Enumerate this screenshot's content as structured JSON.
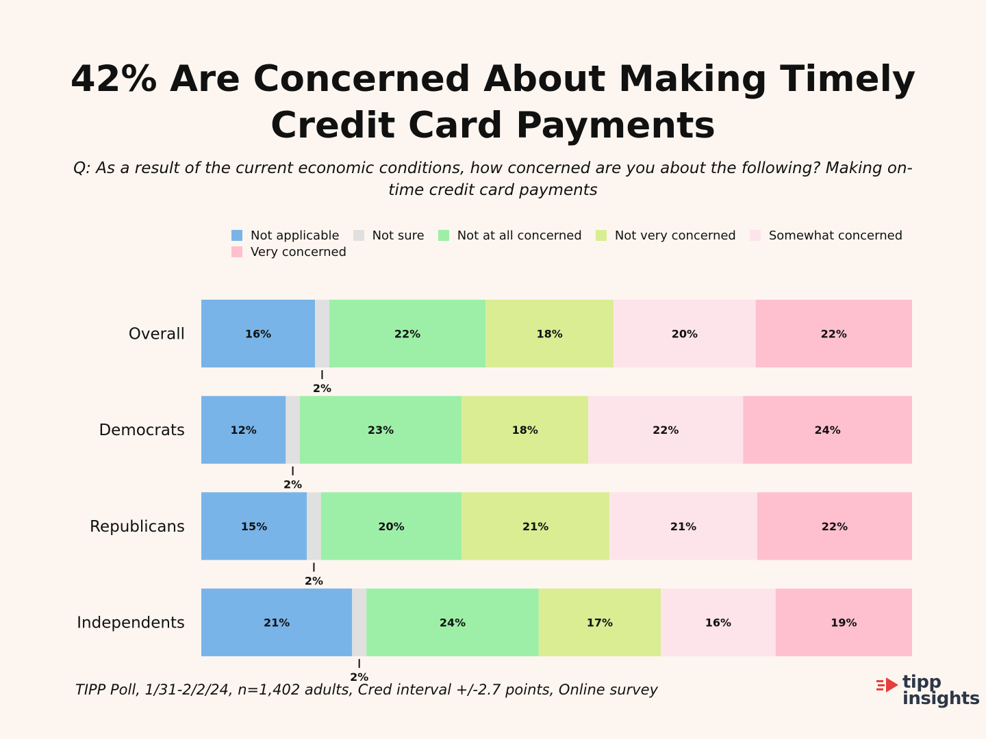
{
  "title": "42% Are Concerned About Making Timely Credit Card Payments",
  "subtitle": "Q: As a result of the current economic conditions, how concerned are you about the following?  Making on-time credit card payments",
  "footer": "TIPP Poll, 1/31-2/2/24, n=1,402 adults, Cred interval +/-2.7 points, Online survey",
  "logo": {
    "line1": "tipp",
    "line2": "insights",
    "accent_color": "#e53e3e"
  },
  "chart_data": {
    "type": "bar",
    "orientation": "horizontal",
    "stacked": true,
    "categories": [
      "Overall",
      "Democrats",
      "Republicans",
      "Independents"
    ],
    "series": [
      {
        "name": "Not applicable",
        "color": "#78b4e8",
        "values": [
          16,
          12,
          15,
          21
        ]
      },
      {
        "name": "Not sure",
        "color": "#e0e0e0",
        "values": [
          2,
          2,
          2,
          2
        ]
      },
      {
        "name": "Not at all concerned",
        "color": "#9def a8",
        "values": [
          22,
          23,
          20,
          24
        ]
      },
      {
        "name": "Not very concerned",
        "color": "#daed93",
        "values": [
          18,
          18,
          21,
          17
        ]
      },
      {
        "name": "Somewhat concerned",
        "color": "#fde4ea",
        "values": [
          20,
          22,
          21,
          16
        ]
      },
      {
        "name": "Very concerned",
        "color": "#fec0cf",
        "values": [
          22,
          24,
          22,
          19
        ]
      }
    ],
    "value_suffix": "%",
    "legend_position": "top",
    "grid": false
  }
}
